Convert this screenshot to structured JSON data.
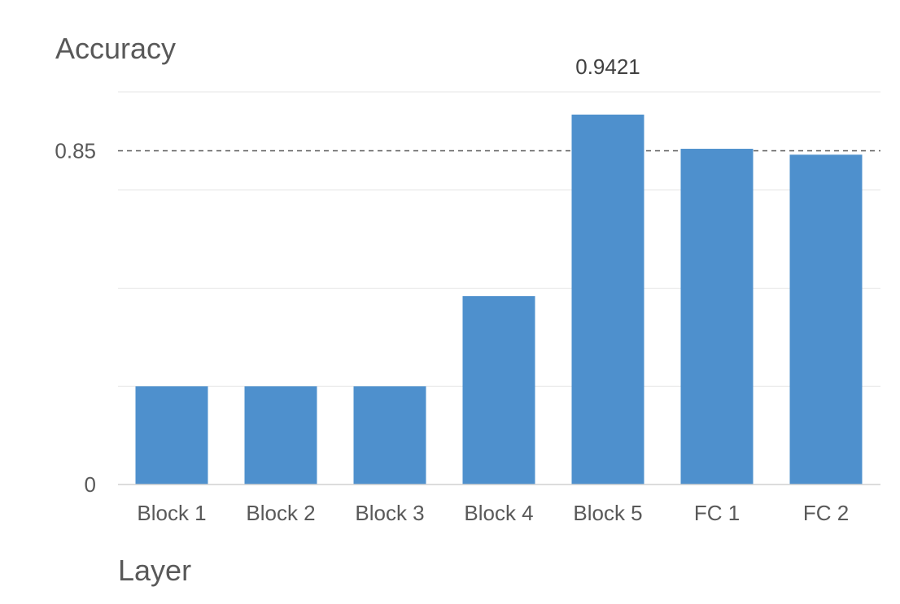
{
  "chart_data": {
    "type": "bar",
    "categories": [
      "Block 1",
      "Block 2",
      "Block 3",
      "Block 4",
      "Block 5",
      "FC 1",
      "FC 2"
    ],
    "values": [
      0.25,
      0.25,
      0.25,
      0.48,
      0.9421,
      0.855,
      0.84
    ],
    "ylabel": "Accuracy",
    "xlabel": "Layer",
    "ylim": [
      0,
      1
    ],
    "y_tick_labels": [
      {
        "value": 0,
        "label": "0"
      },
      {
        "value": 0.85,
        "label": "0.85"
      }
    ],
    "gridline_values": [
      0.25,
      0.5,
      0.75,
      1.0
    ],
    "reference_line": {
      "value": 0.85,
      "style": "dashed"
    },
    "data_labels": [
      {
        "category": "Block 5",
        "text": "0.9421"
      }
    ],
    "bar_color": "#4e90cd",
    "grid": true,
    "legend": "none"
  }
}
